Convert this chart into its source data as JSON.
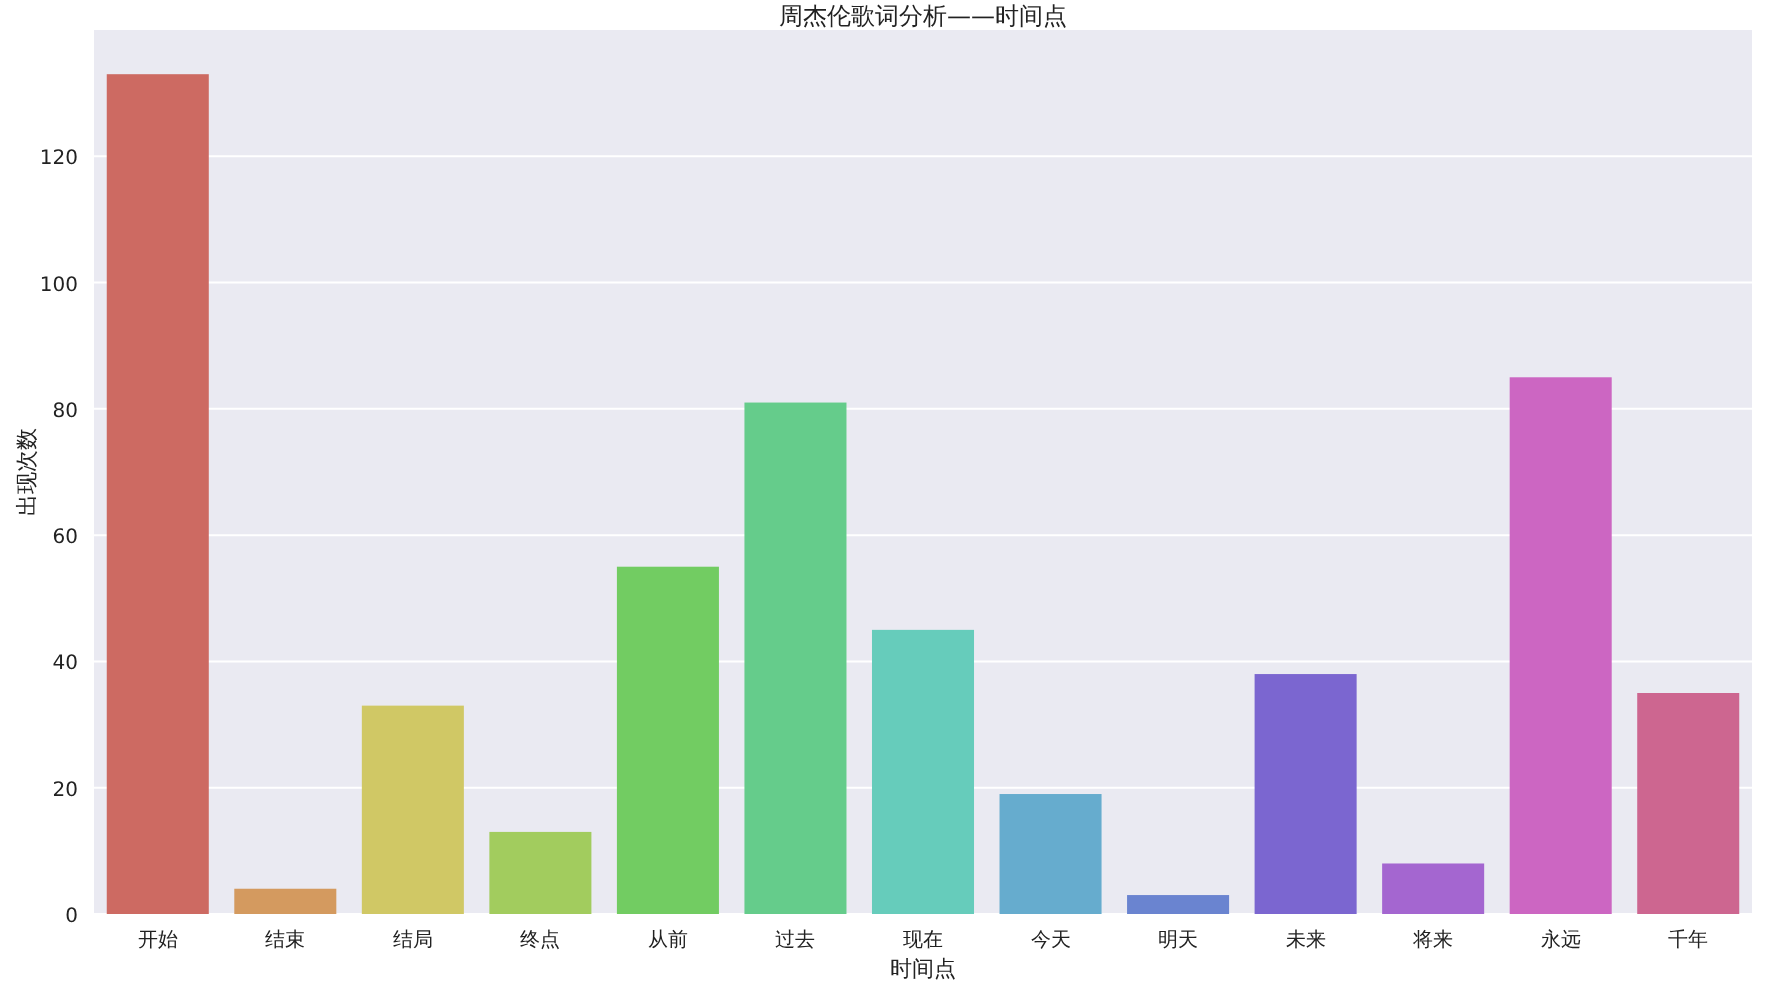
{
  "chart_data": {
    "type": "bar",
    "title": "周杰伦歌词分析——时间点",
    "xlabel": "时间点",
    "ylabel": "出现次数",
    "categories": [
      "开始",
      "结束",
      "结局",
      "终点",
      "从前",
      "过去",
      "现在",
      "今天",
      "明天",
      "未来",
      "将来",
      "永远",
      "千年"
    ],
    "values": [
      133,
      4,
      33,
      13,
      55,
      81,
      45,
      19,
      3,
      38,
      8,
      85,
      35
    ],
    "colors": [
      "#cd6a62",
      "#d49a5f",
      "#d0c865",
      "#a2cc5e",
      "#72cc62",
      "#65cc8b",
      "#66ccbb",
      "#66acce",
      "#6a84d0",
      "#7b66d0",
      "#a466d0",
      "#cc66c2",
      "#cd6690"
    ],
    "ylim": [
      0,
      140
    ],
    "yticks": [
      0,
      20,
      40,
      60,
      80,
      100,
      120
    ],
    "grid": "y"
  }
}
